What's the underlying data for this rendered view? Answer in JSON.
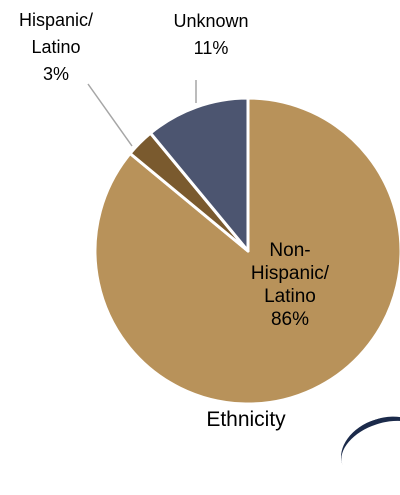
{
  "chart_data": {
    "type": "pie",
    "title": "Ethnicity",
    "slices": [
      {
        "label": "Non-Hispanic/ Latino",
        "label_lines": [
          "Non-",
          "Hispanic/",
          "Latino"
        ],
        "value": 86,
        "display": "86%",
        "color": "#b8925a"
      },
      {
        "label": "Hispanic/ Latino",
        "label_lines": [
          "Hispanic/",
          "Latino"
        ],
        "value": 3,
        "display": "3%",
        "color": "#7a5a2e"
      },
      {
        "label": "Unknown",
        "label_lines": [
          "Unknown"
        ],
        "value": 11,
        "display": "11%",
        "color": "#4c5570"
      }
    ],
    "start": "12 o'clock",
    "direction": "clockwise",
    "legend": "none"
  },
  "colors": {
    "slice_border": "#ffffff",
    "leader_line": "#a6a6a6",
    "accent": "#1b2a4a"
  }
}
